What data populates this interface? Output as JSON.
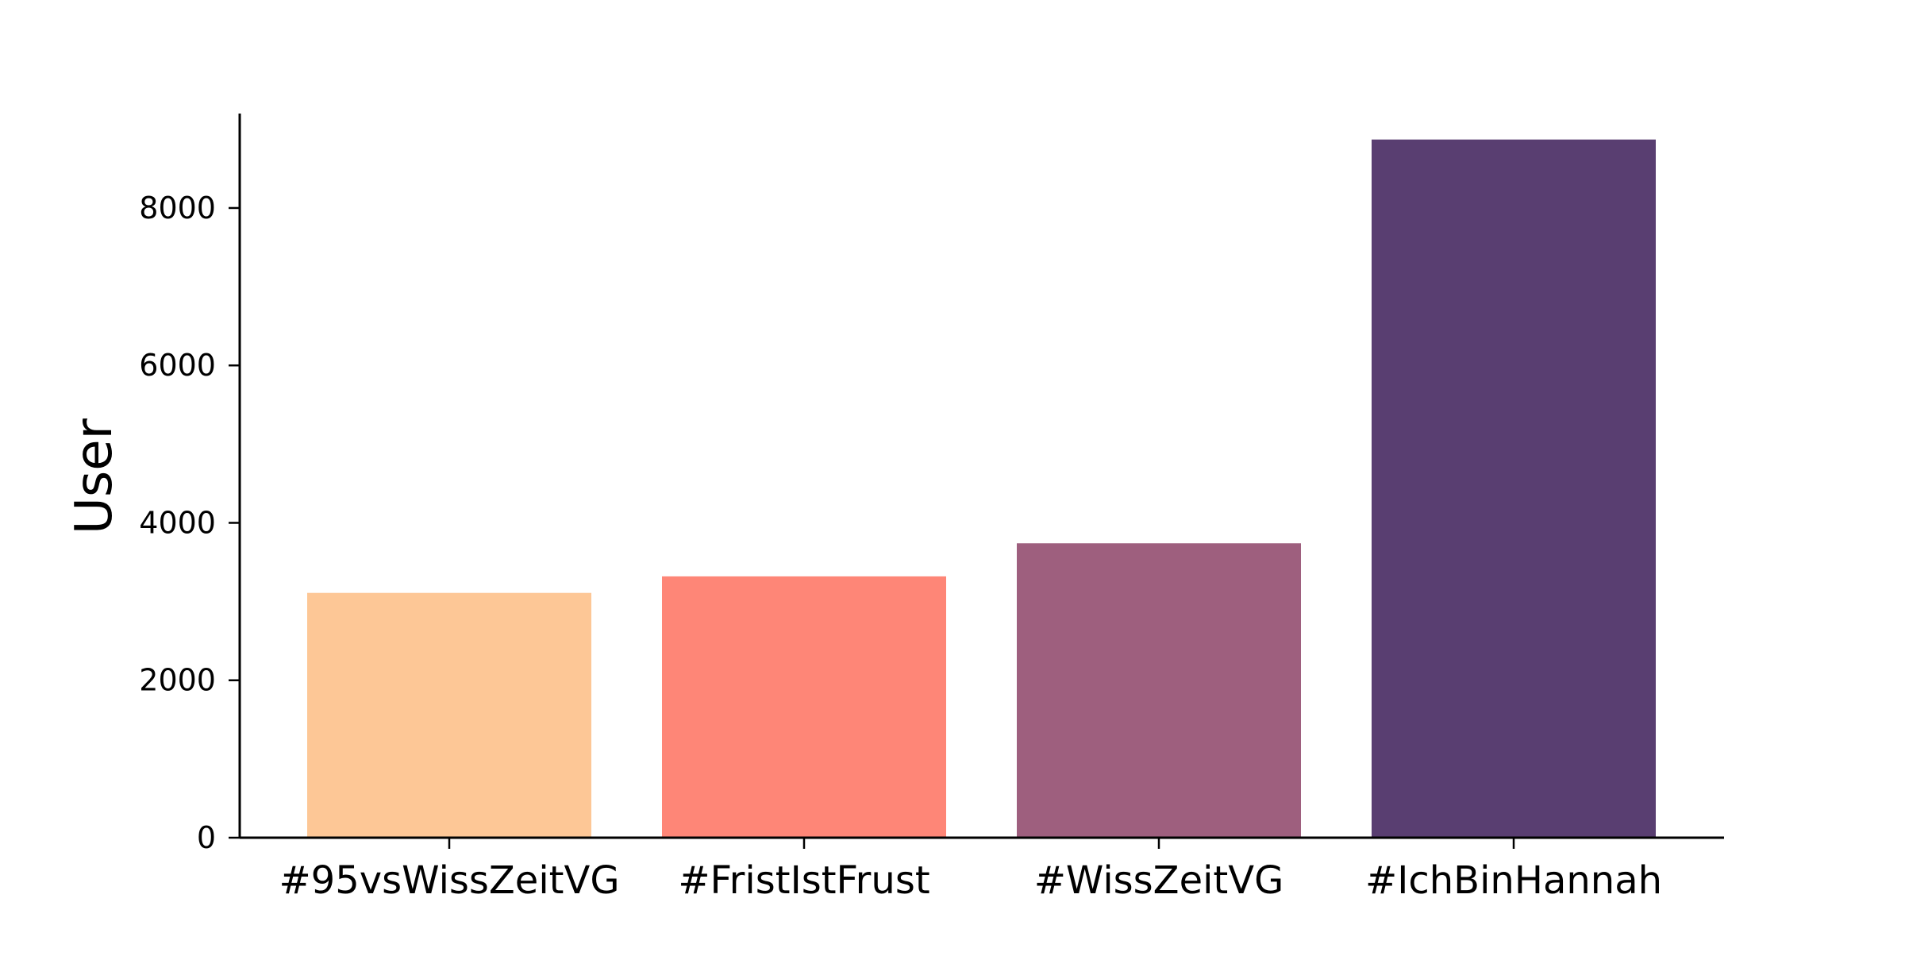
{
  "chart_data": {
    "type": "bar",
    "title": "",
    "xlabel": "",
    "ylabel": "User",
    "categories": [
      "#95vsWissZeitVG",
      "#FristIstFrust",
      "#WissZeitVG",
      "#IchBinHannah"
    ],
    "values": [
      3110,
      3320,
      3740,
      8870
    ],
    "colors": [
      "#fdc796",
      "#fe8677",
      "#9e5f7e",
      "#593e71"
    ],
    "ylim": [
      0,
      9200
    ],
    "yticks": [
      0,
      2000,
      4000,
      6000,
      8000
    ],
    "ytick_labels": [
      "0",
      "2000",
      "4000",
      "6000",
      "8000"
    ],
    "grid": false,
    "legend": "none"
  }
}
